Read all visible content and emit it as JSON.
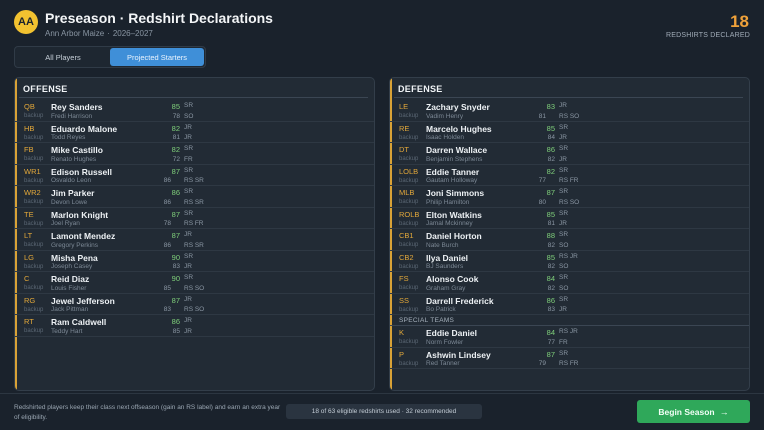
{
  "header": {
    "logo": "AA",
    "title": "Preseason · Redshirt Declarations",
    "team": "Ann Arbor Maize",
    "season": "2026–2027",
    "redshirts_count": "18",
    "redshirts_label": "REDSHIRTS DECLARED"
  },
  "tabs": [
    {
      "label": "All Players",
      "active": false
    },
    {
      "label": "Projected Starters",
      "active": true
    }
  ],
  "offense": {
    "title": "OFFENSE",
    "rows": [
      {
        "pos": "QB",
        "name": "Rey Sanders",
        "ovr": "85",
        "cls": "SR",
        "backup_label": "backup",
        "backup": "Fredi Harrison",
        "bovr": "78",
        "bcls": "SO"
      },
      {
        "pos": "HB",
        "name": "Eduardo Malone",
        "ovr": "82",
        "cls": "JR",
        "backup_label": "backup",
        "backup": "Todd Reyes",
        "bovr": "81",
        "bcls": "JR"
      },
      {
        "pos": "FB",
        "name": "Mike Castillo",
        "ovr": "82",
        "cls": "SR",
        "backup_label": "backup",
        "backup": "Renato Hughes",
        "bovr": "72",
        "bcls": "FR"
      },
      {
        "pos": "WR1",
        "name": "Edison Russell",
        "ovr": "87",
        "cls": "SR",
        "backup_label": "backup",
        "backup": "Osvaldo Leon",
        "bovr": "86",
        "bcls": "RS SR"
      },
      {
        "pos": "WR2",
        "name": "Jim Parker",
        "ovr": "86",
        "cls": "SR",
        "backup_label": "backup",
        "backup": "Devon Lowe",
        "bovr": "86",
        "bcls": "RS SR"
      },
      {
        "pos": "TE",
        "name": "Marlon Knight",
        "ovr": "87",
        "cls": "SR",
        "backup_label": "backup",
        "backup": "Joel Ryan",
        "bovr": "78",
        "bcls": "RS FR"
      },
      {
        "pos": "LT",
        "name": "Lamont Mendez",
        "ovr": "87",
        "cls": "JR",
        "backup_label": "backup",
        "backup": "Gregory Perkins",
        "bovr": "86",
        "bcls": "RS SR"
      },
      {
        "pos": "LG",
        "name": "Misha Pena",
        "ovr": "90",
        "cls": "SR",
        "backup_label": "backup",
        "backup": "Joseph Casey",
        "bovr": "83",
        "bcls": "JR"
      },
      {
        "pos": "C",
        "name": "Reid Diaz",
        "ovr": "90",
        "cls": "SR",
        "backup_label": "backup",
        "backup": "Louis Fisher",
        "bovr": "85",
        "bcls": "RS SO"
      },
      {
        "pos": "RG",
        "name": "Jewel Jefferson",
        "ovr": "87",
        "cls": "JR",
        "backup_label": "backup",
        "backup": "Jack Pittman",
        "bovr": "83",
        "bcls": "RS SO"
      },
      {
        "pos": "RT",
        "name": "Ram Caldwell",
        "ovr": "86",
        "cls": "JR",
        "backup_label": "backup",
        "backup": "Teddy Hart",
        "bovr": "85",
        "bcls": "JR"
      }
    ]
  },
  "defense": {
    "title": "DEFENSE",
    "rows": [
      {
        "pos": "LE",
        "name": "Zachary Snyder",
        "ovr": "83",
        "cls": "JR",
        "backup_label": "backup",
        "backup": "Vadim Henry",
        "bovr": "81",
        "bcls": "RS SO"
      },
      {
        "pos": "RE",
        "name": "Marcelo Hughes",
        "ovr": "85",
        "cls": "SR",
        "backup_label": "backup",
        "backup": "Isaac Holden",
        "bovr": "84",
        "bcls": "JR"
      },
      {
        "pos": "DT",
        "name": "Darren Wallace",
        "ovr": "86",
        "cls": "SR",
        "backup_label": "backup",
        "backup": "Benjamin Stephens",
        "bovr": "82",
        "bcls": "JR"
      },
      {
        "pos": "LOLB",
        "name": "Eddie Tanner",
        "ovr": "82",
        "cls": "SR",
        "backup_label": "backup",
        "backup": "Gautam Holloway",
        "bovr": "77",
        "bcls": "RS FR"
      },
      {
        "pos": "MLB",
        "name": "Joni Simmons",
        "ovr": "87",
        "cls": "SR",
        "backup_label": "backup",
        "backup": "Philip Hamilton",
        "bovr": "80",
        "bcls": "RS SO"
      },
      {
        "pos": "ROLB",
        "name": "Elton Watkins",
        "ovr": "85",
        "cls": "SR",
        "backup_label": "backup",
        "backup": "Jamal Mckinney",
        "bovr": "81",
        "bcls": "JR"
      },
      {
        "pos": "CB1",
        "name": "Daniel Horton",
        "ovr": "88",
        "cls": "SR",
        "backup_label": "backup",
        "backup": "Nate Burch",
        "bovr": "82",
        "bcls": "SO"
      },
      {
        "pos": "CB2",
        "name": "Ilya Daniel",
        "ovr": "85",
        "cls": "RS JR",
        "backup_label": "backup",
        "backup": "BJ Saunders",
        "bovr": "82",
        "bcls": "SO"
      },
      {
        "pos": "FS",
        "name": "Alonso Cook",
        "ovr": "84",
        "cls": "SR",
        "backup_label": "backup",
        "backup": "Graham Gray",
        "bovr": "82",
        "bcls": "SO"
      },
      {
        "pos": "SS",
        "name": "Darrell Frederick",
        "ovr": "86",
        "cls": "SR",
        "backup_label": "backup",
        "backup": "Bo Patrick",
        "bovr": "83",
        "bcls": "JR"
      }
    ],
    "special_label": "SPECIAL TEAMS",
    "special_rows": [
      {
        "pos": "K",
        "name": "Eddie Daniel",
        "ovr": "84",
        "cls": "RS JR",
        "backup_label": "backup",
        "backup": "Norm Fowler",
        "bovr": "77",
        "bcls": "FR"
      },
      {
        "pos": "P",
        "name": "Ashwin Lindsey",
        "ovr": "87",
        "cls": "SR",
        "backup_label": "backup",
        "backup": "Red Tanner",
        "bovr": "79",
        "bcls": "RS FR"
      }
    ]
  },
  "footer": {
    "note": "Redshirted players keep their class next offseason (gain an RS label) and earn an extra year of eligibility.",
    "summary": "18 of 63 eligible redshirts used · 32 recommended",
    "cta": "Begin Season",
    "cta_icon": "arrow-right-icon",
    "colors": {
      "accent": "#3f8fd8",
      "cta": "#2fa85a",
      "highlight": "#f0a23a",
      "ovr": "#7fcf7a"
    }
  }
}
